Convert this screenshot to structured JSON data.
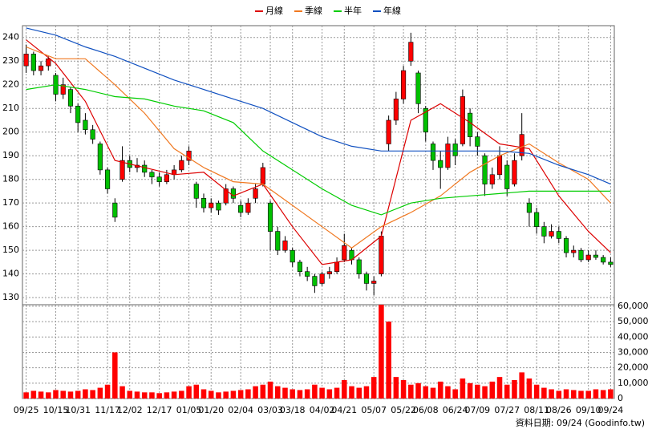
{
  "chart_data": {
    "type": "candlestick",
    "up_color": "#ff0000",
    "down_color": "#00c000",
    "grid": true,
    "legend": "top",
    "footnote": "資料日期: 09/24  (Goodinfo.tw)",
    "xlim": [
      -0.5,
      79.5
    ],
    "xticks": [
      {
        "value": 0,
        "label": "09/25"
      },
      {
        "value": 4,
        "label": "10/15"
      },
      {
        "value": 7,
        "label": "10/31"
      },
      {
        "value": 11,
        "label": "11/17"
      },
      {
        "value": 14,
        "label": "12/02"
      },
      {
        "value": 18,
        "label": "12/17"
      },
      {
        "value": 22,
        "label": "01/05"
      },
      {
        "value": 25,
        "label": "01/20"
      },
      {
        "value": 29,
        "label": "02/04"
      },
      {
        "value": 33,
        "label": "03/03"
      },
      {
        "value": 36,
        "label": "03/18"
      },
      {
        "value": 40,
        "label": "04/02"
      },
      {
        "value": 43,
        "label": "04/21"
      },
      {
        "value": 47,
        "label": "05/07"
      },
      {
        "value": 51,
        "label": "05/22"
      },
      {
        "value": 54,
        "label": "06/08"
      },
      {
        "value": 58,
        "label": "06/24"
      },
      {
        "value": 61,
        "label": "07/09"
      },
      {
        "value": 65,
        "label": "07/27"
      },
      {
        "value": 69,
        "label": "08/11"
      },
      {
        "value": 72,
        "label": "08/26"
      },
      {
        "value": 76,
        "label": "09/10"
      },
      {
        "value": 79,
        "label": "09/24"
      }
    ],
    "ylim": [
      127,
      245
    ],
    "yticks": [
      130,
      140,
      150,
      160,
      170,
      180,
      190,
      200,
      210,
      220,
      230,
      240
    ],
    "ohlc": [
      [
        228,
        237,
        225,
        233
      ],
      [
        233,
        234,
        224,
        226
      ],
      [
        226,
        230,
        224,
        228
      ],
      [
        228,
        232,
        226,
        231
      ],
      [
        224,
        225,
        213,
        216
      ],
      [
        216,
        223,
        214,
        220
      ],
      [
        218,
        219,
        208,
        211
      ],
      [
        211,
        212,
        200,
        204
      ],
      [
        205,
        208,
        199,
        201
      ],
      [
        201,
        203,
        195,
        197
      ],
      [
        195,
        196,
        182,
        184
      ],
      [
        184,
        185,
        174,
        176
      ],
      [
        170,
        172,
        162,
        164
      ],
      [
        180,
        194,
        179,
        188
      ],
      [
        188,
        190,
        183,
        185
      ],
      [
        185,
        189,
        183,
        186
      ],
      [
        186,
        188,
        181,
        183
      ],
      [
        183,
        184,
        178,
        181
      ],
      [
        181,
        183,
        177,
        179
      ],
      [
        179,
        184,
        178,
        182
      ],
      [
        182,
        186,
        180,
        184
      ],
      [
        184,
        190,
        183,
        188
      ],
      [
        188,
        194,
        186,
        192
      ],
      [
        178,
        179,
        168,
        172
      ],
      [
        172,
        174,
        166,
        168
      ],
      [
        168,
        172,
        166,
        170
      ],
      [
        170,
        171,
        165,
        167
      ],
      [
        170,
        178,
        169,
        176
      ],
      [
        176,
        177,
        170,
        172
      ],
      [
        169,
        171,
        164,
        166
      ],
      [
        166,
        172,
        165,
        170
      ],
      [
        172,
        178,
        170,
        176
      ],
      [
        178,
        187,
        177,
        185
      ],
      [
        170,
        171,
        150,
        158
      ],
      [
        158,
        160,
        148,
        150
      ],
      [
        150,
        156,
        149,
        154
      ],
      [
        150,
        151,
        143,
        145
      ],
      [
        145,
        146,
        139,
        141
      ],
      [
        141,
        143,
        137,
        139
      ],
      [
        139,
        140,
        132,
        135
      ],
      [
        136,
        141,
        135,
        140
      ],
      [
        140,
        143,
        138,
        141
      ],
      [
        141,
        147,
        140,
        145
      ],
      [
        146,
        157,
        145,
        152
      ],
      [
        150,
        151,
        144,
        146
      ],
      [
        146,
        147,
        138,
        140
      ],
      [
        140,
        141,
        133,
        136
      ],
      [
        136,
        139,
        131,
        137
      ],
      [
        140,
        158,
        139,
        156
      ],
      [
        195,
        207,
        192,
        205
      ],
      [
        205,
        217,
        203,
        214
      ],
      [
        214,
        228,
        212,
        226
      ],
      [
        230,
        242,
        228,
        238
      ],
      [
        225,
        226,
        208,
        212
      ],
      [
        210,
        211,
        196,
        200
      ],
      [
        195,
        196,
        184,
        188
      ],
      [
        188,
        192,
        176,
        185
      ],
      [
        185,
        198,
        184,
        195
      ],
      [
        195,
        197,
        186,
        190
      ],
      [
        195,
        218,
        194,
        215
      ],
      [
        208,
        210,
        194,
        198
      ],
      [
        198,
        200,
        190,
        194
      ],
      [
        190,
        191,
        173,
        178
      ],
      [
        178,
        185,
        176,
        182
      ],
      [
        182,
        194,
        180,
        190
      ],
      [
        186,
        188,
        173,
        176
      ],
      [
        178,
        191,
        177,
        188
      ],
      [
        190,
        208,
        188,
        199
      ],
      [
        170,
        172,
        160,
        166
      ],
      [
        166,
        168,
        157,
        160
      ],
      [
        160,
        162,
        153,
        156
      ],
      [
        156,
        161,
        155,
        158
      ],
      [
        158,
        160,
        153,
        155
      ],
      [
        155,
        156,
        147,
        149
      ],
      [
        149,
        152,
        147,
        150
      ],
      [
        150,
        151,
        145,
        146
      ],
      [
        146,
        150,
        145,
        148
      ],
      [
        148,
        150,
        146,
        147
      ],
      [
        147,
        148,
        144,
        145
      ],
      [
        145,
        147,
        143,
        144
      ]
    ],
    "x": [
      0,
      4,
      8,
      12,
      16,
      20,
      24,
      28,
      32,
      36,
      40,
      44,
      48,
      52,
      56,
      60,
      64,
      68,
      72,
      76,
      79
    ],
    "series": [
      {
        "name": "月線",
        "color": "#dd0000",
        "values": [
          239,
          229,
          213,
          188,
          185,
          182,
          183,
          173,
          178,
          160,
          144,
          146,
          156,
          205,
          212,
          204,
          195,
          193,
          173,
          158,
          149
        ]
      },
      {
        "name": "季線",
        "color": "#f07820",
        "values": [
          236,
          231,
          231,
          220,
          208,
          193,
          185,
          179,
          178,
          169,
          160,
          151,
          160,
          166,
          173,
          183,
          190,
          195,
          187,
          180,
          170
        ]
      },
      {
        "name": "半年",
        "color": "#00cc00",
        "values": [
          218,
          220,
          218,
          215,
          214,
          211,
          209,
          204,
          192,
          184,
          176,
          169,
          165,
          170,
          172,
          173,
          174,
          175,
          175,
          175,
          175
        ]
      },
      {
        "name": "年線",
        "color": "#1050c0",
        "values": [
          244,
          241,
          236,
          232,
          227,
          222,
          218,
          214,
          210,
          204,
          198,
          194,
          192,
          192,
          192,
          192,
          192,
          191,
          186,
          182,
          178
        ]
      }
    ],
    "volume": {
      "color": "#ff0000",
      "ylim": [
        0,
        61000
      ],
      "yticks": [
        0,
        {
          "value": 10000,
          "label": "10,000"
        },
        {
          "value": 20000,
          "label": "20,000"
        },
        {
          "value": 30000,
          "label": "30,000"
        },
        {
          "value": 40000,
          "label": "40,000"
        },
        {
          "value": 50000,
          "label": "50,000"
        },
        {
          "value": 60000,
          "label": "60,000"
        }
      ],
      "values": [
        4000,
        5000,
        4500,
        4000,
        5500,
        5000,
        4500,
        5000,
        6000,
        5500,
        7000,
        9000,
        30000,
        8000,
        5000,
        4500,
        4000,
        4000,
        3500,
        4000,
        4500,
        5000,
        8000,
        9000,
        6000,
        5000,
        4000,
        4500,
        5000,
        5500,
        6000,
        8000,
        9000,
        11000,
        8000,
        7000,
        6000,
        5500,
        6000,
        9000,
        7000,
        6000,
        7000,
        12000,
        8000,
        7000,
        8000,
        14000,
        61000,
        50000,
        14000,
        12000,
        9000,
        10000,
        8000,
        7000,
        11000,
        8000,
        6000,
        13000,
        10000,
        9000,
        8000,
        11000,
        14000,
        9000,
        12000,
        17000,
        13000,
        9000,
        7000,
        6000,
        5000,
        6000,
        5500,
        5000,
        5000,
        6000,
        5500,
        6000
      ]
    }
  }
}
